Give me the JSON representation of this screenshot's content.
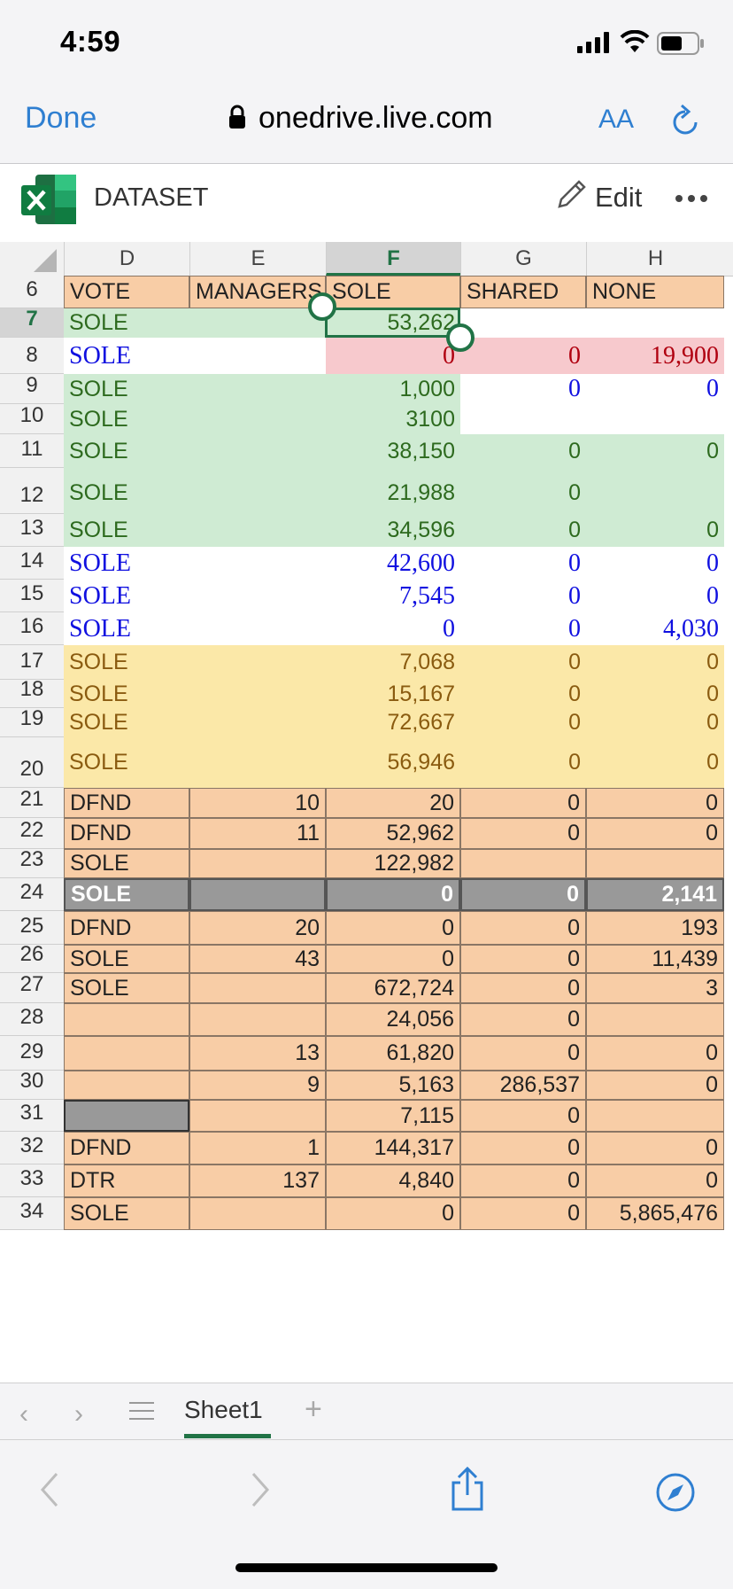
{
  "status_bar": {
    "time": "4:59"
  },
  "browser": {
    "done_label": "Done",
    "url": "onedrive.live.com",
    "text_size_label": "AA"
  },
  "app": {
    "doc_name": "DATASET",
    "edit_label": "Edit"
  },
  "colors": {
    "green": "#cfebd3",
    "pink": "#f7c9cd",
    "yellow": "#fbe8a8",
    "peach": "#f8cda6",
    "gray": "#999999",
    "selection": "#217346"
  },
  "grid": {
    "columns": [
      "D",
      "E",
      "F",
      "G",
      "H"
    ],
    "selected_column": "F",
    "selected_row": "7",
    "rows": [
      {
        "num": "6",
        "cells": [
          "VOTE",
          "MANAGERS",
          "SOLE",
          "SHARED",
          "NONE"
        ]
      },
      {
        "num": "7",
        "cells": [
          "SOLE",
          "",
          "53,262",
          "",
          ""
        ]
      },
      {
        "num": "8",
        "cells": [
          "SOLE",
          "",
          "0",
          "0",
          "19,900"
        ]
      },
      {
        "num": "9",
        "cells": [
          "SOLE",
          "",
          "1,000",
          "0",
          "0"
        ]
      },
      {
        "num": "10",
        "cells": [
          "SOLE",
          "",
          "3100",
          "",
          ""
        ]
      },
      {
        "num": "11",
        "cells": [
          "SOLE",
          "",
          "38,150",
          "0",
          "0"
        ]
      },
      {
        "num": "12",
        "cells": [
          "SOLE",
          "",
          "21,988",
          "0",
          ""
        ]
      },
      {
        "num": "13",
        "cells": [
          "SOLE",
          "",
          "34,596",
          "0",
          "0"
        ]
      },
      {
        "num": "14",
        "cells": [
          "SOLE",
          "",
          "42,600",
          "0",
          "0"
        ]
      },
      {
        "num": "15",
        "cells": [
          "SOLE",
          "",
          "7,545",
          "0",
          "0"
        ]
      },
      {
        "num": "16",
        "cells": [
          "SOLE",
          "",
          "0",
          "0",
          "4,030"
        ]
      },
      {
        "num": "17",
        "cells": [
          "SOLE",
          "",
          "7,068",
          "0",
          "0"
        ]
      },
      {
        "num": "18",
        "cells": [
          "SOLE",
          "",
          "15,167",
          "0",
          "0"
        ]
      },
      {
        "num": "19",
        "cells": [
          "SOLE",
          "",
          "72,667",
          "0",
          "0"
        ]
      },
      {
        "num": "20",
        "cells": [
          "SOLE",
          "",
          "56,946",
          "0",
          "0"
        ]
      },
      {
        "num": "21",
        "cells": [
          "DFND",
          "10",
          "20",
          "0",
          "0"
        ]
      },
      {
        "num": "22",
        "cells": [
          "DFND",
          "11",
          "52,962",
          "0",
          "0"
        ]
      },
      {
        "num": "23",
        "cells": [
          "SOLE",
          "",
          "122,982",
          "",
          ""
        ]
      },
      {
        "num": "24",
        "cells": [
          "SOLE",
          "",
          "0",
          "0",
          "2,141"
        ]
      },
      {
        "num": "25",
        "cells": [
          "DFND",
          "20",
          "0",
          "0",
          "193"
        ]
      },
      {
        "num": "26",
        "cells": [
          "SOLE",
          "43",
          "0",
          "0",
          "11,439"
        ]
      },
      {
        "num": "27",
        "cells": [
          "SOLE",
          "",
          "672,724",
          "0",
          "3"
        ]
      },
      {
        "num": "28",
        "cells": [
          "",
          "",
          "24,056",
          "0",
          ""
        ]
      },
      {
        "num": "29",
        "cells": [
          "",
          "13",
          "61,820",
          "0",
          "0"
        ]
      },
      {
        "num": "30",
        "cells": [
          "",
          "9",
          "5,163",
          "286,537",
          "0"
        ]
      },
      {
        "num": "31",
        "cells": [
          "",
          "",
          "7,115",
          "0",
          ""
        ]
      },
      {
        "num": "32",
        "cells": [
          "DFND",
          "1",
          "144,317",
          "0",
          "0"
        ]
      },
      {
        "num": "33",
        "cells": [
          "DTR",
          "137",
          "4,840",
          "0",
          "0"
        ]
      },
      {
        "num": "34",
        "cells": [
          "SOLE",
          "",
          "0",
          "0",
          "5,865,476"
        ]
      }
    ]
  },
  "sheets": {
    "active": "Sheet1"
  }
}
